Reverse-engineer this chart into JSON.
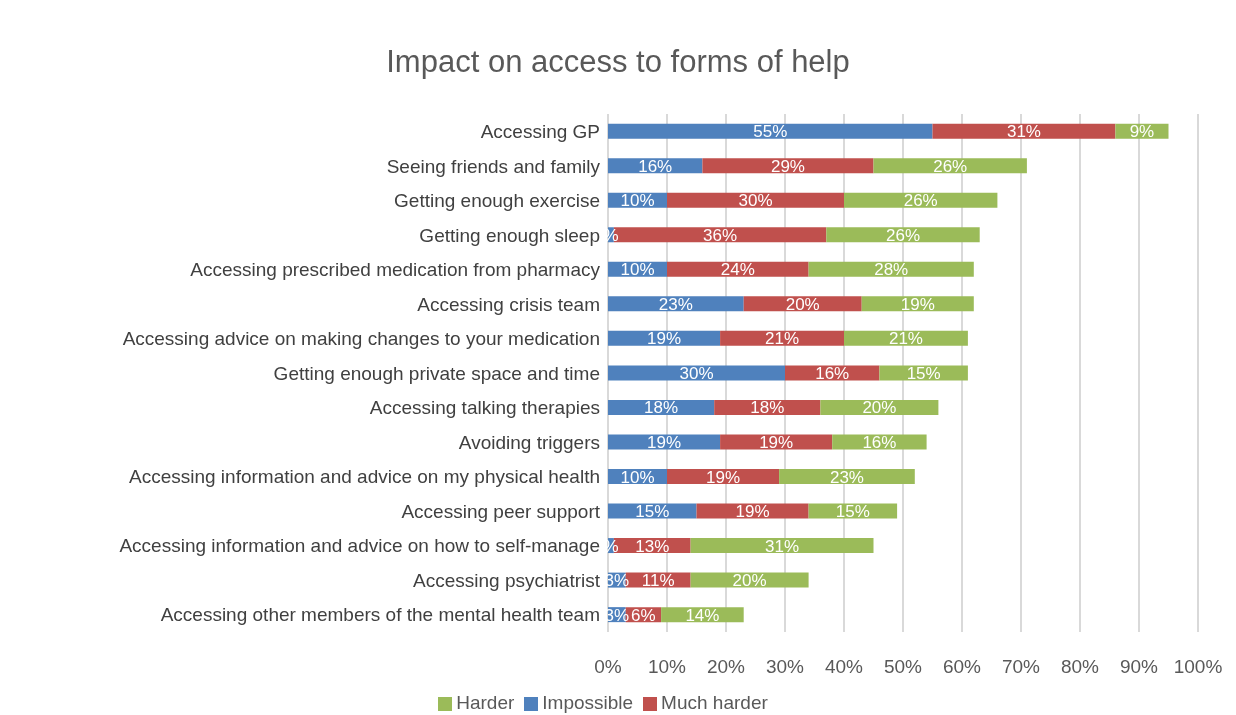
{
  "chart_data": {
    "type": "bar",
    "orientation": "horizontal",
    "stacked": true,
    "title": "Impact on access to forms of help",
    "categories": [
      "Accessing GP",
      "Seeing friends and family",
      "Getting enough exercise",
      "Getting enough sleep",
      "Accessing prescribed medication from pharmacy",
      "Accessing crisis team",
      "Accessing advice on making changes to your medication",
      "Getting enough private space and time",
      "Accessing talking therapies",
      "Avoiding triggers",
      "Accessing information and advice on my physical health",
      "Accessing peer support",
      "Accessing information and advice on how to self-manage",
      "Accessing psychiatrist",
      "Accessing other members of the mental health team"
    ],
    "series": [
      {
        "name": "Impossible",
        "color": "#4f81bd",
        "values": [
          55,
          16,
          10,
          1,
          10,
          23,
          19,
          30,
          18,
          19,
          10,
          15,
          1,
          3,
          3
        ],
        "value_labels": [
          "55%",
          "16%",
          "10%",
          "%",
          "10%",
          "23%",
          "19%",
          "30%",
          "18%",
          "19%",
          "10%",
          "15%",
          "%",
          "3%",
          "3%"
        ]
      },
      {
        "name": "Much harder",
        "color": "#c0504d",
        "values": [
          31,
          29,
          30,
          36,
          24,
          20,
          21,
          16,
          18,
          19,
          19,
          19,
          13,
          11,
          6
        ],
        "value_labels": [
          "31%",
          "29%",
          "30%",
          "36%",
          "24%",
          "20%",
          "21%",
          "16%",
          "18%",
          "19%",
          "19%",
          "19%",
          "13%",
          "11%",
          "6%"
        ]
      },
      {
        "name": "Harder",
        "color": "#9bbb59",
        "values": [
          9,
          26,
          26,
          26,
          28,
          19,
          21,
          15,
          20,
          16,
          23,
          15,
          31,
          20,
          14
        ],
        "value_labels": [
          "9%",
          "26%",
          "26%",
          "26%",
          "28%",
          "19%",
          "21%",
          "15%",
          "20%",
          "16%",
          "23%",
          "15%",
          "31%",
          "20%",
          "14%"
        ]
      }
    ],
    "xlim": [
      0,
      100
    ],
    "xticks": [
      {
        "value": 0,
        "label": "0%"
      },
      {
        "value": 10,
        "label": "10%"
      },
      {
        "value": 20,
        "label": "20%"
      },
      {
        "value": 30,
        "label": "30%"
      },
      {
        "value": 40,
        "label": "40%"
      },
      {
        "value": 50,
        "label": "50%"
      },
      {
        "value": 60,
        "label": "60%"
      },
      {
        "value": 70,
        "label": "70%"
      },
      {
        "value": 80,
        "label": "80%"
      },
      {
        "value": 90,
        "label": "90%"
      },
      {
        "value": 100,
        "label": "100%"
      }
    ],
    "grid": "x",
    "legend": "bottom"
  }
}
